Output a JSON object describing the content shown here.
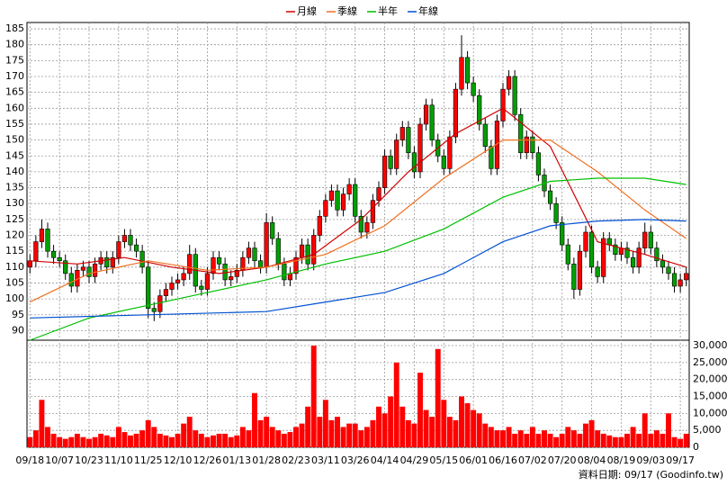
{
  "chart_data": {
    "type": "candlestick",
    "categories": [
      "09/18",
      null,
      null,
      null,
      null,
      "10/07",
      null,
      null,
      null,
      null,
      "10/23",
      null,
      null,
      null,
      null,
      "11/10",
      null,
      null,
      null,
      null,
      "11/25",
      null,
      null,
      null,
      null,
      "12/10",
      null,
      null,
      null,
      null,
      "12/26",
      null,
      null,
      null,
      null,
      "01/13",
      null,
      null,
      null,
      null,
      "01/28",
      null,
      null,
      null,
      null,
      "02/23",
      null,
      null,
      null,
      null,
      "03/11",
      null,
      null,
      null,
      null,
      "03/26",
      null,
      null,
      null,
      null,
      "04/14",
      null,
      null,
      null,
      null,
      "04/29",
      null,
      null,
      null,
      null,
      "05/15",
      null,
      null,
      null,
      null,
      "06/01",
      null,
      null,
      null,
      null,
      "06/16",
      null,
      null,
      null,
      null,
      "07/02",
      null,
      null,
      null,
      null,
      "07/20",
      null,
      null,
      null,
      null,
      "08/04",
      null,
      null,
      null,
      null,
      "08/19",
      null,
      null,
      null,
      null,
      "09/03",
      null,
      null,
      null,
      null,
      "09/17",
      null
    ],
    "open": [
      110,
      112,
      118,
      122,
      115,
      113,
      112,
      108,
      104,
      109,
      110,
      107,
      111,
      113,
      110,
      113,
      118,
      120,
      117,
      115,
      110,
      97,
      96,
      101,
      103,
      105,
      106,
      108,
      114,
      104,
      103,
      108,
      113,
      111,
      106,
      107,
      109,
      113,
      116,
      112,
      110,
      124,
      119,
      111,
      106,
      108,
      113,
      117,
      111,
      120,
      126,
      131,
      134,
      128,
      133,
      136,
      126,
      121,
      124,
      131,
      135,
      145,
      141,
      150,
      154,
      146,
      140,
      155,
      161,
      150,
      145,
      141,
      151,
      166,
      176,
      168,
      164,
      155,
      148,
      141,
      156,
      166,
      170,
      158,
      146,
      151,
      146,
      139,
      134,
      130,
      124,
      117,
      111,
      103,
      115,
      121,
      110,
      107,
      119,
      117,
      114,
      116,
      113,
      110,
      116,
      121,
      116,
      112,
      110,
      108,
      104,
      106
    ],
    "high": [
      114,
      120,
      125,
      124,
      117,
      115,
      114,
      110,
      111,
      112,
      112,
      113,
      115,
      115,
      115,
      120,
      122,
      122,
      119,
      117,
      112,
      99,
      103,
      105,
      107,
      108,
      110,
      117,
      116,
      106,
      110,
      115,
      115,
      113,
      109,
      111,
      115,
      118,
      118,
      114,
      127,
      126,
      121,
      113,
      110,
      115,
      119,
      119,
      122,
      128,
      133,
      136,
      136,
      135,
      138,
      138,
      128,
      126,
      133,
      137,
      147,
      147,
      152,
      156,
      156,
      148,
      157,
      163,
      163,
      152,
      147,
      153,
      168,
      183,
      178,
      170,
      166,
      157,
      150,
      158,
      168,
      172,
      172,
      160,
      153,
      153,
      148,
      141,
      136,
      132,
      126,
      119,
      113,
      117,
      123,
      123,
      112,
      121,
      121,
      119,
      118,
      118,
      115,
      118,
      124,
      123,
      118,
      114,
      112,
      110,
      108,
      110
    ],
    "low": [
      108,
      110,
      116,
      113,
      111,
      110,
      106,
      102,
      102,
      107,
      105,
      105,
      109,
      108,
      108,
      111,
      116,
      115,
      113,
      108,
      94,
      93,
      94,
      99,
      101,
      103,
      104,
      106,
      102,
      101,
      101,
      106,
      109,
      104,
      104,
      105,
      107,
      111,
      110,
      108,
      108,
      117,
      109,
      104,
      104,
      106,
      111,
      109,
      109,
      118,
      124,
      129,
      126,
      126,
      131,
      124,
      119,
      119,
      122,
      129,
      133,
      139,
      139,
      148,
      144,
      138,
      138,
      153,
      148,
      143,
      139,
      139,
      149,
      164,
      166,
      162,
      153,
      146,
      139,
      139,
      154,
      164,
      156,
      144,
      144,
      144,
      137,
      132,
      128,
      122,
      115,
      109,
      100,
      101,
      113,
      108,
      105,
      105,
      115,
      112,
      112,
      111,
      108,
      108,
      114,
      114,
      110,
      108,
      106,
      102,
      102,
      104
    ],
    "close": [
      112,
      118,
      122,
      115,
      113,
      112,
      108,
      104,
      109,
      110,
      107,
      111,
      113,
      110,
      113,
      118,
      120,
      117,
      115,
      110,
      97,
      96,
      101,
      103,
      105,
      106,
      108,
      114,
      104,
      103,
      108,
      113,
      111,
      106,
      107,
      109,
      113,
      116,
      112,
      110,
      124,
      119,
      111,
      106,
      108,
      113,
      117,
      111,
      120,
      126,
      131,
      134,
      128,
      133,
      136,
      126,
      121,
      124,
      131,
      135,
      145,
      141,
      150,
      154,
      146,
      140,
      155,
      161,
      150,
      145,
      141,
      151,
      166,
      176,
      168,
      164,
      155,
      148,
      141,
      156,
      166,
      170,
      158,
      146,
      151,
      146,
      139,
      134,
      130,
      124,
      117,
      111,
      103,
      115,
      121,
      110,
      107,
      119,
      117,
      114,
      116,
      113,
      110,
      116,
      121,
      116,
      112,
      110,
      108,
      104,
      106,
      108
    ],
    "volume": [
      3000,
      5000,
      14000,
      6000,
      4000,
      3000,
      2500,
      3000,
      4000,
      3000,
      2500,
      3000,
      4000,
      3500,
      3000,
      6000,
      4500,
      3500,
      4000,
      5000,
      8000,
      6000,
      4000,
      3500,
      3000,
      4000,
      7000,
      9000,
      5000,
      4000,
      3000,
      3500,
      4000,
      4000,
      3000,
      3500,
      6000,
      5000,
      16000,
      8000,
      9000,
      6000,
      5000,
      4000,
      4500,
      6000,
      7000,
      12000,
      30000,
      9000,
      14000,
      8000,
      9000,
      6000,
      7000,
      7000,
      5000,
      6000,
      8000,
      12000,
      10000,
      15000,
      25000,
      12000,
      8000,
      7000,
      22000,
      11000,
      9000,
      29000,
      14000,
      9000,
      8000,
      15000,
      13000,
      11000,
      10000,
      7000,
      6000,
      5000,
      5000,
      6000,
      4000,
      5000,
      4000,
      6000,
      4000,
      5000,
      4000,
      3000,
      4000,
      6000,
      5000,
      4000,
      7000,
      8000,
      5000,
      4000,
      3500,
      3000,
      3000,
      4000,
      6000,
      4000,
      10000,
      4000,
      5000,
      4000,
      10000,
      3000,
      2500,
      4000
    ],
    "up_color": "#ff0000",
    "down_color": "#00a000",
    "volume_color": "#ff0000",
    "series": [
      {
        "name": "月線",
        "color": "#d00000",
        "x": [
          0,
          8,
          16,
          24,
          32,
          40,
          48,
          56,
          64,
          72,
          80,
          88,
          96,
          104,
          111
        ],
        "values": [
          112,
          111,
          113,
          110,
          108,
          110,
          114,
          125,
          140,
          152,
          160,
          148,
          118,
          114,
          110
        ]
      },
      {
        "name": "季線",
        "color": "#f07020",
        "x": [
          0,
          10,
          20,
          30,
          40,
          50,
          60,
          70,
          80,
          88,
          96,
          104,
          111
        ],
        "values": [
          99,
          108,
          112,
          109,
          110,
          114,
          123,
          138,
          150,
          150,
          140,
          128,
          119
        ]
      },
      {
        "name": "半年",
        "color": "#00c000",
        "x": [
          0,
          10,
          20,
          30,
          40,
          50,
          60,
          70,
          80,
          88,
          96,
          104,
          111
        ],
        "values": [
          87,
          94,
          98,
          102,
          106,
          111,
          115,
          122,
          132,
          137,
          138,
          138,
          136
        ]
      },
      {
        "name": "年線",
        "color": "#0050d0",
        "x": [
          0,
          20,
          40,
          50,
          60,
          70,
          80,
          88,
          96,
          104,
          111
        ],
        "values": [
          94,
          95,
          96,
          99,
          102,
          108,
          118,
          123,
          124.5,
          125,
          124.5
        ]
      }
    ],
    "ylim": [
      87,
      187
    ],
    "yticks": [
      90,
      95,
      100,
      105,
      110,
      115,
      120,
      125,
      130,
      135,
      140,
      145,
      150,
      155,
      160,
      165,
      170,
      175,
      180,
      185
    ],
    "y2lim": [
      0,
      30800
    ],
    "y2ticks": [
      0,
      {
        "value": 5000,
        "label": "5,000"
      },
      {
        "value": 10000,
        "label": "10,000"
      },
      {
        "value": 15000,
        "label": "15,000"
      },
      {
        "value": 20000,
        "label": "20,000"
      },
      {
        "value": 25000,
        "label": "25,000"
      },
      {
        "value": 30000,
        "label": "30,000"
      }
    ],
    "grid": true,
    "note": "資料日期: 09/17 (Goodinfo.tw)"
  }
}
